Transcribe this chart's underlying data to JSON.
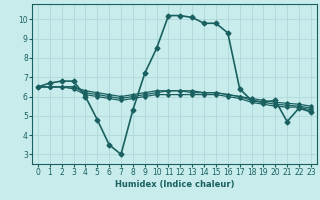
{
  "xlabel": "Humidex (Indice chaleur)",
  "ylabel": "",
  "background_color": "#c8ecec",
  "grid_color": "#b0d8d8",
  "line_color": "#1a6060",
  "xlim": [
    -0.5,
    23.5
  ],
  "ylim": [
    2.5,
    10.8
  ],
  "yticks": [
    3,
    4,
    5,
    6,
    7,
    8,
    9,
    10
  ],
  "xticks": [
    0,
    1,
    2,
    3,
    4,
    5,
    6,
    7,
    8,
    9,
    10,
    11,
    12,
    13,
    14,
    15,
    16,
    17,
    18,
    19,
    20,
    21,
    22,
    23
  ],
  "series": [
    {
      "x": [
        0,
        1,
        2,
        3,
        4,
        5,
        6,
        7,
        8,
        9,
        10,
        11,
        12,
        13,
        14,
        15,
        16,
        17,
        18,
        19,
        20,
        21,
        22,
        23
      ],
      "y": [
        6.5,
        6.7,
        6.8,
        6.8,
        6.0,
        4.8,
        3.5,
        3.0,
        5.3,
        7.2,
        8.5,
        10.2,
        10.2,
        10.1,
        9.8,
        9.8,
        9.3,
        6.4,
        5.8,
        5.7,
        5.8,
        4.7,
        5.4,
        5.2
      ],
      "marker": "D",
      "markersize": 2.5,
      "linewidth": 1.2
    },
    {
      "x": [
        0,
        1,
        2,
        3,
        4,
        5,
        6,
        7,
        8,
        9,
        10,
        11,
        12,
        13,
        14,
        15,
        16,
        17,
        18,
        19,
        20,
        21,
        22,
        23
      ],
      "y": [
        6.5,
        6.5,
        6.5,
        6.5,
        6.3,
        6.2,
        6.1,
        6.0,
        6.1,
        6.2,
        6.3,
        6.3,
        6.3,
        6.3,
        6.2,
        6.2,
        6.1,
        6.0,
        5.9,
        5.8,
        5.7,
        5.65,
        5.6,
        5.5
      ],
      "marker": "D",
      "markersize": 1.8,
      "linewidth": 0.9
    },
    {
      "x": [
        0,
        1,
        2,
        3,
        4,
        5,
        6,
        7,
        8,
        9,
        10,
        11,
        12,
        13,
        14,
        15,
        16,
        17,
        18,
        19,
        20,
        21,
        22,
        23
      ],
      "y": [
        6.5,
        6.5,
        6.5,
        6.5,
        6.2,
        6.1,
        6.0,
        5.9,
        6.0,
        6.1,
        6.2,
        6.3,
        6.3,
        6.2,
        6.2,
        6.2,
        6.1,
        6.0,
        5.8,
        5.7,
        5.6,
        5.55,
        5.5,
        5.4
      ],
      "marker": "D",
      "markersize": 1.8,
      "linewidth": 0.9
    },
    {
      "x": [
        0,
        1,
        2,
        3,
        4,
        5,
        6,
        7,
        8,
        9,
        10,
        11,
        12,
        13,
        14,
        15,
        16,
        17,
        18,
        19,
        20,
        21,
        22,
        23
      ],
      "y": [
        6.5,
        6.5,
        6.5,
        6.4,
        6.1,
        6.0,
        5.9,
        5.8,
        5.9,
        6.0,
        6.1,
        6.1,
        6.1,
        6.1,
        6.1,
        6.1,
        6.0,
        5.9,
        5.7,
        5.6,
        5.5,
        5.45,
        5.45,
        5.3
      ],
      "marker": "D",
      "markersize": 1.8,
      "linewidth": 0.9
    }
  ]
}
